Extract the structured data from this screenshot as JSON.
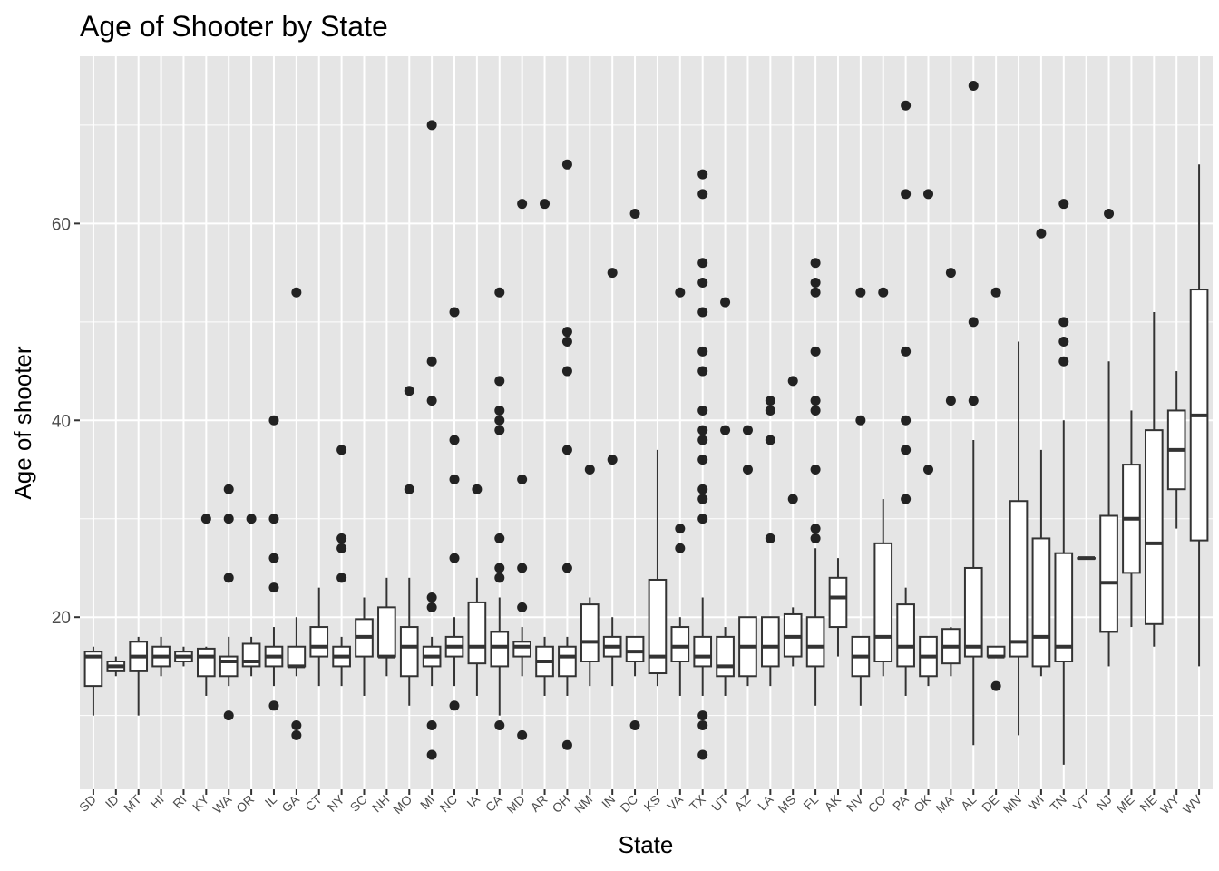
{
  "chart_data": {
    "type": "box",
    "title": "Age of Shooter by State",
    "xlabel": "State",
    "ylabel": "Age of shooter",
    "ylim": [
      2.5,
      77
    ],
    "yticks": [
      20,
      40,
      60
    ],
    "grid": true,
    "legend": "none",
    "boxes": [
      {
        "state": "SD",
        "lower": 10,
        "q1": 13,
        "median": 16,
        "q3": 16.5,
        "upper": 17,
        "outliers": []
      },
      {
        "state": "ID",
        "lower": 14,
        "q1": 14.5,
        "median": 15,
        "q3": 15.5,
        "upper": 16,
        "outliers": []
      },
      {
        "state": "MT",
        "lower": 10,
        "q1": 14.5,
        "median": 16,
        "q3": 17.5,
        "upper": 18,
        "outliers": []
      },
      {
        "state": "HI",
        "lower": 14,
        "q1": 15,
        "median": 16,
        "q3": 17,
        "upper": 18,
        "outliers": []
      },
      {
        "state": "RI",
        "lower": 15,
        "q1": 15.5,
        "median": 16,
        "q3": 16.5,
        "upper": 17,
        "outliers": []
      },
      {
        "state": "KY",
        "lower": 12,
        "q1": 14,
        "median": 16,
        "q3": 16.8,
        "upper": 17,
        "outliers": [
          30
        ]
      },
      {
        "state": "WA",
        "lower": 13,
        "q1": 14,
        "median": 15.5,
        "q3": 16,
        "upper": 18,
        "outliers": [
          10,
          24,
          30,
          33
        ]
      },
      {
        "state": "OR",
        "lower": 14,
        "q1": 15,
        "median": 15.5,
        "q3": 17.3,
        "upper": 18,
        "outliers": [
          30
        ]
      },
      {
        "state": "IL",
        "lower": 13,
        "q1": 15,
        "median": 16,
        "q3": 17,
        "upper": 19,
        "outliers": [
          11,
          23,
          26,
          30,
          40
        ]
      },
      {
        "state": "GA",
        "lower": 14,
        "q1": 15,
        "median": 15,
        "q3": 17,
        "upper": 20,
        "outliers": [
          8,
          9,
          53
        ]
      },
      {
        "state": "CT",
        "lower": 13,
        "q1": 16,
        "median": 17,
        "q3": 19,
        "upper": 23,
        "outliers": []
      },
      {
        "state": "NY",
        "lower": 13,
        "q1": 15,
        "median": 16,
        "q3": 17,
        "upper": 18,
        "outliers": [
          24,
          27,
          28,
          37
        ]
      },
      {
        "state": "SC",
        "lower": 12,
        "q1": 16,
        "median": 18,
        "q3": 19.8,
        "upper": 22,
        "outliers": []
      },
      {
        "state": "NH",
        "lower": 14,
        "q1": 16,
        "median": 16,
        "q3": 21,
        "upper": 24,
        "outliers": []
      },
      {
        "state": "MO",
        "lower": 11,
        "q1": 14,
        "median": 17,
        "q3": 19,
        "upper": 24,
        "outliers": [
          33,
          43
        ]
      },
      {
        "state": "MI",
        "lower": 13,
        "q1": 15,
        "median": 16,
        "q3": 17,
        "upper": 18,
        "outliers": [
          6,
          9,
          21,
          22,
          42,
          46,
          70
        ]
      },
      {
        "state": "NC",
        "lower": 13,
        "q1": 16,
        "median": 17,
        "q3": 18,
        "upper": 20,
        "outliers": [
          11,
          26,
          34,
          38,
          51
        ]
      },
      {
        "state": "IA",
        "lower": 12,
        "q1": 15.3,
        "median": 17,
        "q3": 21.5,
        "upper": 24,
        "outliers": [
          33
        ]
      },
      {
        "state": "CA",
        "lower": 10,
        "q1": 15,
        "median": 17,
        "q3": 18.5,
        "upper": 22,
        "outliers": [
          9,
          24,
          25,
          28,
          39,
          40,
          41,
          44,
          53
        ]
      },
      {
        "state": "MD",
        "lower": 14,
        "q1": 16,
        "median": 17,
        "q3": 17.5,
        "upper": 19,
        "outliers": [
          8,
          21,
          25,
          34,
          62
        ]
      },
      {
        "state": "AR",
        "lower": 12,
        "q1": 14,
        "median": 15.5,
        "q3": 17,
        "upper": 18,
        "outliers": [
          62
        ]
      },
      {
        "state": "OH",
        "lower": 12,
        "q1": 14,
        "median": 16,
        "q3": 17,
        "upper": 18,
        "outliers": [
          7,
          25,
          37,
          45,
          48,
          49,
          66
        ]
      },
      {
        "state": "NM",
        "lower": 13,
        "q1": 15.5,
        "median": 17.5,
        "q3": 21.3,
        "upper": 22,
        "outliers": [
          35
        ]
      },
      {
        "state": "IN",
        "lower": 13,
        "q1": 16,
        "median": 17,
        "q3": 18,
        "upper": 20,
        "outliers": [
          36,
          55
        ]
      },
      {
        "state": "DC",
        "lower": 14,
        "q1": 15.5,
        "median": 16.5,
        "q3": 18,
        "upper": 18,
        "outliers": [
          9,
          61
        ]
      },
      {
        "state": "KS",
        "lower": 13,
        "q1": 14.3,
        "median": 16,
        "q3": 23.8,
        "upper": 37,
        "outliers": []
      },
      {
        "state": "VA",
        "lower": 12,
        "q1": 15.5,
        "median": 17,
        "q3": 19,
        "upper": 20,
        "outliers": [
          27,
          29,
          53
        ]
      },
      {
        "state": "TX",
        "lower": 12,
        "q1": 15,
        "median": 16,
        "q3": 18,
        "upper": 22,
        "outliers": [
          6,
          9,
          10,
          30,
          32,
          33,
          36,
          38,
          39,
          41,
          45,
          47,
          51,
          54,
          56,
          63,
          65
        ]
      },
      {
        "state": "UT",
        "lower": 12,
        "q1": 14,
        "median": 15,
        "q3": 18,
        "upper": 19,
        "outliers": [
          39,
          52
        ]
      },
      {
        "state": "AZ",
        "lower": 13,
        "q1": 14,
        "median": 17,
        "q3": 20,
        "upper": 20,
        "outliers": [
          35,
          39
        ]
      },
      {
        "state": "LA",
        "lower": 13,
        "q1": 15,
        "median": 17,
        "q3": 20,
        "upper": 20,
        "outliers": [
          28,
          38,
          41,
          42
        ]
      },
      {
        "state": "MS",
        "lower": 15,
        "q1": 16,
        "median": 18,
        "q3": 20.3,
        "upper": 21,
        "outliers": [
          32,
          44
        ]
      },
      {
        "state": "FL",
        "lower": 11,
        "q1": 15,
        "median": 17,
        "q3": 20,
        "upper": 27,
        "outliers": [
          28,
          29,
          35,
          41,
          42,
          47,
          53,
          54,
          56
        ]
      },
      {
        "state": "AK",
        "lower": 16,
        "q1": 19,
        "median": 22,
        "q3": 24,
        "upper": 26,
        "outliers": []
      },
      {
        "state": "NV",
        "lower": 11,
        "q1": 14,
        "median": 16,
        "q3": 18,
        "upper": 18,
        "outliers": [
          40,
          53
        ]
      },
      {
        "state": "CO",
        "lower": 14,
        "q1": 15.5,
        "median": 18,
        "q3": 27.5,
        "upper": 32,
        "outliers": [
          53
        ]
      },
      {
        "state": "PA",
        "lower": 12,
        "q1": 15,
        "median": 17,
        "q3": 21.3,
        "upper": 23,
        "outliers": [
          32,
          37,
          40,
          47,
          63,
          72
        ]
      },
      {
        "state": "OK",
        "lower": 13,
        "q1": 14,
        "median": 16,
        "q3": 18,
        "upper": 18,
        "outliers": [
          35,
          63
        ]
      },
      {
        "state": "MA",
        "lower": 14,
        "q1": 15.3,
        "median": 17,
        "q3": 18.8,
        "upper": 19,
        "outliers": [
          42,
          55
        ]
      },
      {
        "state": "AL",
        "lower": 7,
        "q1": 16,
        "median": 17,
        "q3": 25,
        "upper": 38,
        "outliers": [
          42,
          50,
          74
        ]
      },
      {
        "state": "DE",
        "lower": 16,
        "q1": 16,
        "median": 16,
        "q3": 17,
        "upper": 17,
        "outliers": [
          13,
          53
        ]
      },
      {
        "state": "MN",
        "lower": 8,
        "q1": 16,
        "median": 17.5,
        "q3": 31.8,
        "upper": 48,
        "outliers": []
      },
      {
        "state": "WI",
        "lower": 14,
        "q1": 15,
        "median": 18,
        "q3": 28,
        "upper": 37,
        "outliers": [
          59
        ]
      },
      {
        "state": "TN",
        "lower": 5,
        "q1": 15.5,
        "median": 17,
        "q3": 26.5,
        "upper": 40,
        "outliers": [
          46,
          48,
          50,
          62
        ]
      },
      {
        "state": "VT",
        "lower": 26,
        "q1": 26,
        "median": 26,
        "q3": 26,
        "upper": 26,
        "outliers": []
      },
      {
        "state": "NJ",
        "lower": 15,
        "q1": 18.5,
        "median": 23.5,
        "q3": 30.3,
        "upper": 46,
        "outliers": [
          61
        ]
      },
      {
        "state": "ME",
        "lower": 19,
        "q1": 24.5,
        "median": 30,
        "q3": 35.5,
        "upper": 41,
        "outliers": []
      },
      {
        "state": "NE",
        "lower": 17,
        "q1": 19.3,
        "median": 27.5,
        "q3": 39,
        "upper": 51,
        "outliers": []
      },
      {
        "state": "WY",
        "lower": 29,
        "q1": 33,
        "median": 37,
        "q3": 41,
        "upper": 45,
        "outliers": []
      },
      {
        "state": "WV",
        "lower": 15,
        "q1": 27.8,
        "median": 40.5,
        "q3": 53.3,
        "upper": 66,
        "outliers": []
      }
    ]
  },
  "colors": {
    "panel": "#e5e5e5",
    "grid": "#ffffff",
    "box_fill": "#ffffff",
    "box_line": "#333333",
    "point": "#222222"
  }
}
